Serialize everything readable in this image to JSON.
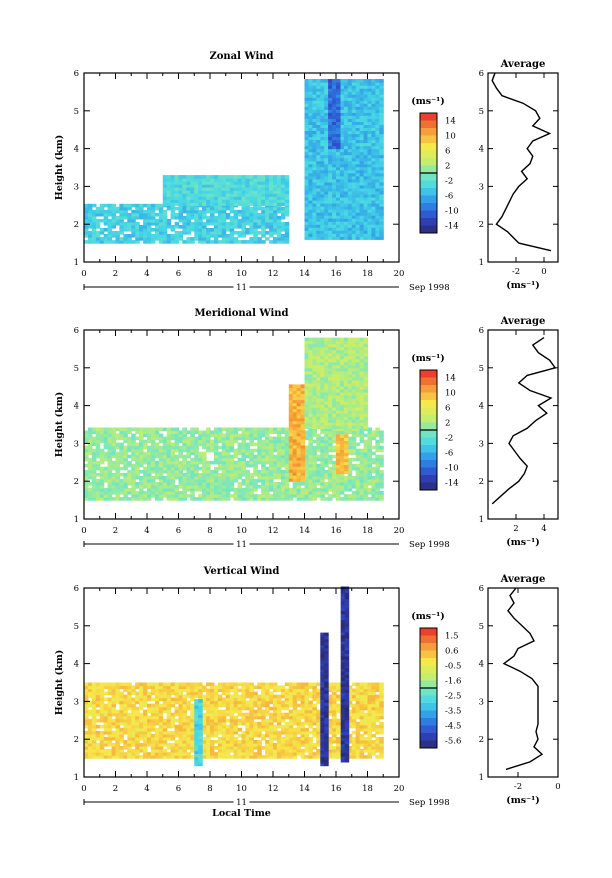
{
  "chart_data": [
    {
      "type": "heatmap",
      "title": "Zonal Wind",
      "xlabel": "",
      "ylabel": "Height (km)",
      "xlim": [
        0,
        20
      ],
      "ylim": [
        1,
        6
      ],
      "xticks": [
        "0",
        "2",
        "4",
        "6",
        "8",
        "10",
        "12",
        "14",
        "16",
        "18",
        "20"
      ],
      "yticks": [
        "1",
        "2",
        "3",
        "4",
        "5",
        "6"
      ],
      "date_axis": {
        "day": "11",
        "label": "Sep 1998"
      },
      "colorbar": {
        "unit": "(ms⁻¹)",
        "range": [
          -16,
          16
        ],
        "ticks": [
          "14",
          "10",
          "6",
          "2",
          "-2",
          "-6",
          "-10",
          "-14"
        ]
      },
      "data_summary": [
        {
          "hours": [
            0,
            13
          ],
          "heights_km": [
            1.5,
            2.5
          ],
          "value_ms": -4
        },
        {
          "hours": [
            5,
            13
          ],
          "heights_km": [
            2.5,
            3.3
          ],
          "value_ms": -3
        },
        {
          "hours": [
            14,
            19
          ],
          "heights_km": [
            1.6,
            5.8
          ],
          "value_ms": -5
        },
        {
          "hours": [
            15.5,
            16.2
          ],
          "heights_km": [
            4.0,
            5.8
          ],
          "value_ms": -10
        }
      ],
      "profile": {
        "title": "Average",
        "xlabel": "(ms⁻¹)",
        "xticks": [
          "-2",
          "0"
        ],
        "xlim": [
          -4,
          1
        ],
        "yticks": [
          "1",
          "2",
          "3",
          "4",
          "5",
          "6"
        ],
        "heights_km": [
          1.3,
          1.5,
          1.8,
          2.0,
          2.2,
          2.5,
          2.8,
          3.0,
          3.2,
          3.4,
          3.6,
          3.8,
          4.0,
          4.2,
          4.4,
          4.6,
          4.8,
          5.0,
          5.2,
          5.4,
          5.6,
          5.8,
          6.0
        ],
        "values_ms": [
          0.5,
          -1.8,
          -2.6,
          -3.4,
          -3.0,
          -2.6,
          -2.2,
          -1.8,
          -1.2,
          -1.6,
          -1.0,
          -0.8,
          -1.2,
          -0.8,
          0.4,
          -0.8,
          -0.3,
          -0.6,
          -1.5,
          -3.0,
          -3.4,
          -3.7,
          -3.5
        ]
      }
    },
    {
      "type": "heatmap",
      "title": "Meridional Wind",
      "xlabel": "",
      "ylabel": "Height (km)",
      "xlim": [
        0,
        20
      ],
      "ylim": [
        1,
        6
      ],
      "xticks": [
        "0",
        "2",
        "4",
        "6",
        "8",
        "10",
        "12",
        "14",
        "16",
        "18",
        "20"
      ],
      "yticks": [
        "1",
        "2",
        "3",
        "4",
        "5",
        "6"
      ],
      "date_axis": {
        "day": "11",
        "label": "Sep 1998"
      },
      "colorbar": {
        "unit": "(ms⁻¹)",
        "range": [
          -16,
          16
        ],
        "ticks": [
          "14",
          "10",
          "6",
          "2",
          "-2",
          "-6",
          "-10",
          "-14"
        ]
      },
      "data_summary": [
        {
          "hours": [
            0,
            19
          ],
          "heights_km": [
            1.5,
            3.4
          ],
          "value_ms": 1
        },
        {
          "hours": [
            13,
            14
          ],
          "heights_km": [
            2.0,
            4.5
          ],
          "value_ms": 10
        },
        {
          "hours": [
            16,
            16.6
          ],
          "heights_km": [
            2.2,
            3.2
          ],
          "value_ms": 9
        },
        {
          "hours": [
            14,
            18
          ],
          "heights_km": [
            3.4,
            5.8
          ],
          "value_ms": 2
        }
      ],
      "profile": {
        "title": "Average",
        "xlabel": "(ms⁻¹)",
        "xticks": [
          "2",
          "4"
        ],
        "xlim": [
          0,
          5
        ],
        "yticks": [
          "1",
          "2",
          "3",
          "4",
          "5",
          "6"
        ],
        "heights_km": [
          1.4,
          1.6,
          1.8,
          2.0,
          2.2,
          2.4,
          2.6,
          2.8,
          3.0,
          3.2,
          3.4,
          3.6,
          3.8,
          4.0,
          4.2,
          4.4,
          4.6,
          4.8,
          5.0,
          5.2,
          5.4,
          5.6,
          5.8
        ],
        "values_ms": [
          0.3,
          0.9,
          1.5,
          2.2,
          2.6,
          2.8,
          2.3,
          1.9,
          1.5,
          1.8,
          2.8,
          3.4,
          4.2,
          3.6,
          4.5,
          3.0,
          2.2,
          2.8,
          4.8,
          4.4,
          3.6,
          3.2,
          4.0
        ]
      }
    },
    {
      "type": "heatmap",
      "title": "Vertical Wind",
      "xlabel": "Local Time",
      "ylabel": "Height (km)",
      "xlim": [
        0,
        20
      ],
      "ylim": [
        1,
        6
      ],
      "xticks": [
        "0",
        "2",
        "4",
        "6",
        "8",
        "10",
        "12",
        "14",
        "16",
        "18",
        "20"
      ],
      "yticks": [
        "1",
        "2",
        "3",
        "4",
        "5",
        "6"
      ],
      "date_axis": {
        "day": "11",
        "label": "Sep 1998"
      },
      "colorbar": {
        "unit": "(ms⁻¹)",
        "range": [
          -6.5,
          2.5
        ],
        "ticks": [
          "1.5",
          "0.6",
          "-0.5",
          "-1.6",
          "-2.5",
          "-3.5",
          "-4.5",
          "-5.6"
        ]
      },
      "data_summary": [
        {
          "hours": [
            0,
            19
          ],
          "heights_km": [
            1.5,
            3.5
          ],
          "value_ms": 0.2
        },
        {
          "hours": [
            7,
            7.3
          ],
          "heights_km": [
            1.3,
            3.0
          ],
          "value_ms": -3.0
        },
        {
          "hours": [
            15,
            15.3
          ],
          "heights_km": [
            1.3,
            4.8
          ],
          "value_ms": -6.0
        },
        {
          "hours": [
            16.3,
            16.6
          ],
          "heights_km": [
            1.4,
            6.0
          ],
          "value_ms": -6.0
        }
      ],
      "profile": {
        "title": "Average",
        "xlabel": "(ms⁻¹)",
        "xticks": [
          "-2",
          "0"
        ],
        "xlim": [
          -3.5,
          0
        ],
        "yticks": [
          "1",
          "2",
          "3",
          "4",
          "5",
          "6"
        ],
        "heights_km": [
          1.2,
          1.4,
          1.6,
          1.8,
          2.0,
          2.2,
          2.4,
          2.6,
          2.8,
          3.0,
          3.2,
          3.4,
          3.6,
          3.8,
          4.0,
          4.2,
          4.4,
          4.6,
          4.8,
          5.0,
          5.2,
          5.4,
          5.6,
          5.8,
          6.0
        ],
        "values_ms": [
          -2.6,
          -1.4,
          -0.8,
          -1.2,
          -1.0,
          -1.1,
          -1.0,
          -1.0,
          -1.0,
          -1.0,
          -1.0,
          -1.0,
          -1.3,
          -1.9,
          -2.7,
          -2.2,
          -2.0,
          -1.2,
          -1.4,
          -1.8,
          -2.2,
          -2.5,
          -2.2,
          -2.4,
          -2.1
        ]
      }
    }
  ]
}
